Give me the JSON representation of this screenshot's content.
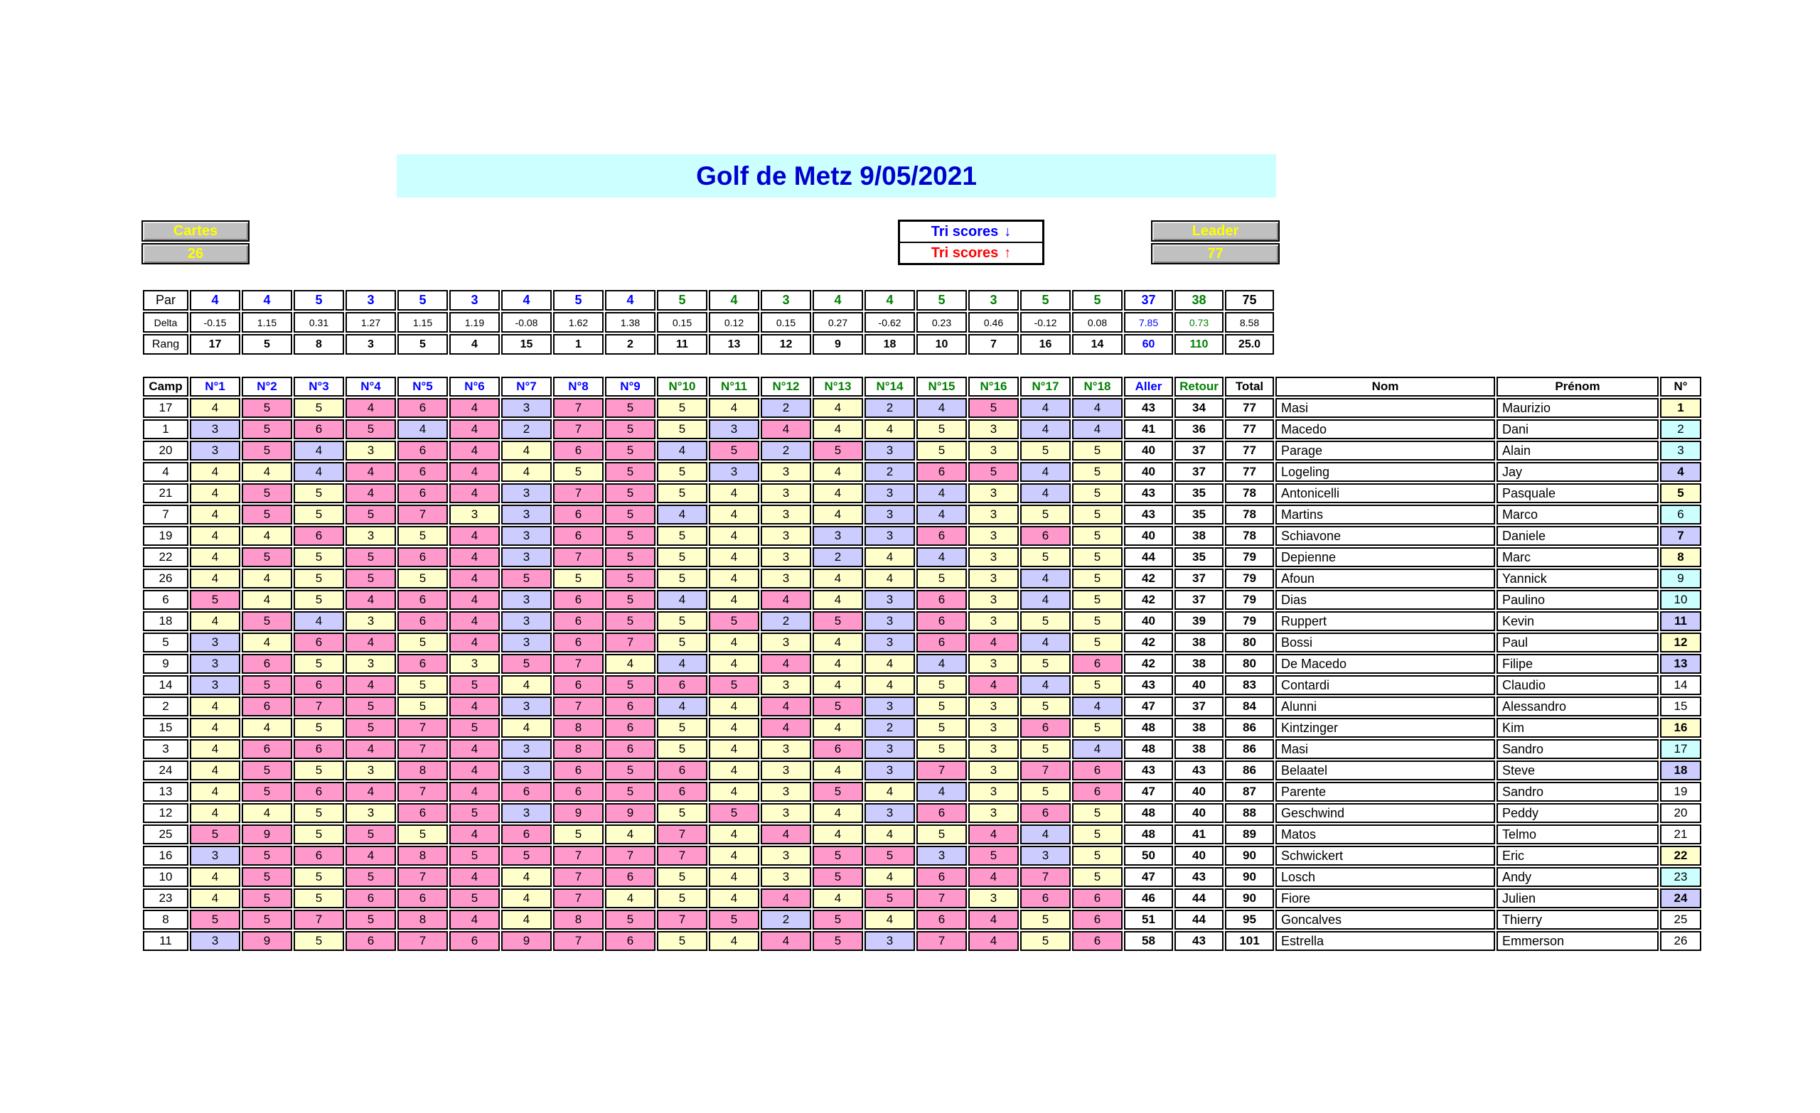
{
  "title": "Golf de Metz 9/05/2021",
  "controls": {
    "cartes_label": "Cartes",
    "cartes_value": "26",
    "tri_down_label": "Tri scores",
    "tri_down_arrow": "↓",
    "tri_up_label": "Tri scores",
    "tri_up_arrow": "↑",
    "leader_label": "Leader",
    "leader_value": "77"
  },
  "par_table": {
    "par_label": "Par",
    "par": [
      4,
      4,
      5,
      3,
      5,
      3,
      4,
      5,
      4,
      5,
      4,
      3,
      4,
      4,
      5,
      3,
      5,
      5
    ],
    "par_aller": "37",
    "par_retour": "38",
    "par_total": "75",
    "delta_label": "Delta",
    "delta": [
      "-0.15",
      "1.15",
      "0.31",
      "1.27",
      "1.15",
      "1.19",
      "-0.08",
      "1.62",
      "1.38",
      "0.15",
      "0.12",
      "0.15",
      "0.27",
      "-0.62",
      "0.23",
      "0.46",
      "-0.12",
      "0.08"
    ],
    "delta_aller": "7.85",
    "delta_retour": "0.73",
    "delta_total": "8.58",
    "rang_label": "Rang",
    "rang": [
      "17",
      "5",
      "8",
      "3",
      "5",
      "4",
      "15",
      "1",
      "2",
      "11",
      "13",
      "12",
      "9",
      "18",
      "10",
      "7",
      "16",
      "14"
    ],
    "rang_aller": "60",
    "rang_retour": "110",
    "rang_total": "25.0"
  },
  "table": {
    "headers": {
      "camp": "Camp",
      "holes": [
        "N°1",
        "N°2",
        "N°3",
        "N°4",
        "N°5",
        "N°6",
        "N°7",
        "N°8",
        "N°9",
        "N°10",
        "N°11",
        "N°12",
        "N°13",
        "N°14",
        "N°15",
        "N°16",
        "N°17",
        "N°18"
      ],
      "aller": "Aller",
      "retour": "Retour",
      "total": "Total",
      "nom": "Nom",
      "prenom": "Prénom",
      "num": "N°"
    },
    "players": [
      {
        "camp": "17",
        "scores": [
          4,
          5,
          5,
          4,
          6,
          4,
          3,
          7,
          5,
          5,
          4,
          2,
          4,
          2,
          4,
          5,
          4,
          4
        ],
        "aller": "43",
        "retour": "34",
        "total": "77",
        "nom": "Masi",
        "prenom": "Maurizio",
        "num": "1",
        "num_color": "y"
      },
      {
        "camp": "1",
        "scores": [
          3,
          5,
          6,
          5,
          4,
          4,
          2,
          7,
          5,
          5,
          3,
          4,
          4,
          4,
          5,
          3,
          4,
          4
        ],
        "aller": "41",
        "retour": "36",
        "total": "77",
        "nom": "Macedo",
        "prenom": "Dani",
        "num": "2",
        "num_color": "c"
      },
      {
        "camp": "20",
        "scores": [
          3,
          5,
          4,
          3,
          6,
          4,
          4,
          6,
          5,
          4,
          5,
          2,
          5,
          3,
          5,
          3,
          5,
          5
        ],
        "aller": "40",
        "retour": "37",
        "total": "77",
        "nom": "Parage",
        "prenom": "Alain",
        "num": "3",
        "num_color": "c"
      },
      {
        "camp": "4",
        "scores": [
          4,
          4,
          4,
          4,
          6,
          4,
          4,
          5,
          5,
          5,
          3,
          3,
          4,
          2,
          6,
          5,
          4,
          5
        ],
        "aller": "40",
        "retour": "37",
        "total": "77",
        "nom": "Logeling",
        "prenom": "Jay",
        "num": "4",
        "num_color": "l"
      },
      {
        "camp": "21",
        "scores": [
          4,
          5,
          5,
          4,
          6,
          4,
          3,
          7,
          5,
          5,
          4,
          3,
          4,
          3,
          4,
          3,
          4,
          5
        ],
        "aller": "43",
        "retour": "35",
        "total": "78",
        "nom": "Antonicelli",
        "prenom": "Pasquale",
        "num": "5",
        "num_color": "y"
      },
      {
        "camp": "7",
        "scores": [
          4,
          5,
          5,
          5,
          7,
          3,
          3,
          6,
          5,
          4,
          4,
          3,
          4,
          3,
          4,
          3,
          5,
          5
        ],
        "aller": "43",
        "retour": "35",
        "total": "78",
        "nom": "Martins",
        "prenom": "Marco",
        "num": "6",
        "num_color": "c"
      },
      {
        "camp": "19",
        "scores": [
          4,
          4,
          6,
          3,
          5,
          4,
          3,
          6,
          5,
          5,
          4,
          3,
          3,
          3,
          6,
          3,
          6,
          5
        ],
        "aller": "40",
        "retour": "38",
        "total": "78",
        "nom": "Schiavone",
        "prenom": "Daniele",
        "num": "7",
        "num_color": "l"
      },
      {
        "camp": "22",
        "scores": [
          4,
          5,
          5,
          5,
          6,
          4,
          3,
          7,
          5,
          5,
          4,
          3,
          2,
          4,
          4,
          3,
          5,
          5
        ],
        "aller": "44",
        "retour": "35",
        "total": "79",
        "nom": "Depienne",
        "prenom": "Marc",
        "num": "8",
        "num_color": "y"
      },
      {
        "camp": "26",
        "scores": [
          4,
          4,
          5,
          5,
          5,
          4,
          5,
          5,
          5,
          5,
          4,
          3,
          4,
          4,
          5,
          3,
          4,
          5
        ],
        "aller": "42",
        "retour": "37",
        "total": "79",
        "nom": "Afoun",
        "prenom": "Yannick",
        "num": "9",
        "num_color": "c"
      },
      {
        "camp": "6",
        "scores": [
          5,
          4,
          5,
          4,
          6,
          4,
          3,
          6,
          5,
          4,
          4,
          4,
          4,
          3,
          6,
          3,
          4,
          5
        ],
        "aller": "42",
        "retour": "37",
        "total": "79",
        "nom": "Dias",
        "prenom": "Paulino",
        "num": "10",
        "num_color": "c"
      },
      {
        "camp": "18",
        "scores": [
          4,
          5,
          4,
          3,
          6,
          4,
          3,
          6,
          5,
          5,
          5,
          2,
          5,
          3,
          6,
          3,
          5,
          5
        ],
        "aller": "40",
        "retour": "39",
        "total": "79",
        "nom": "Ruppert",
        "prenom": "Kevin",
        "num": "11",
        "num_color": "l"
      },
      {
        "camp": "5",
        "scores": [
          3,
          4,
          6,
          4,
          5,
          4,
          3,
          6,
          7,
          5,
          4,
          3,
          4,
          3,
          6,
          4,
          4,
          5
        ],
        "aller": "42",
        "retour": "38",
        "total": "80",
        "nom": "Bossi",
        "prenom": "Paul",
        "num": "12",
        "num_color": "y"
      },
      {
        "camp": "9",
        "scores": [
          3,
          6,
          5,
          3,
          6,
          3,
          5,
          7,
          4,
          4,
          4,
          4,
          4,
          4,
          4,
          3,
          5,
          6
        ],
        "aller": "42",
        "retour": "38",
        "total": "80",
        "nom": "De Macedo",
        "prenom": "Filipe",
        "num": "13",
        "num_color": "l"
      },
      {
        "camp": "14",
        "scores": [
          3,
          5,
          6,
          4,
          5,
          5,
          4,
          6,
          5,
          6,
          5,
          3,
          4,
          4,
          5,
          4,
          4,
          5
        ],
        "aller": "43",
        "retour": "40",
        "total": "83",
        "nom": "Contardi",
        "prenom": "Claudio",
        "num": "14",
        "num_color": "w"
      },
      {
        "camp": "2",
        "scores": [
          4,
          6,
          7,
          5,
          5,
          4,
          3,
          7,
          6,
          4,
          4,
          4,
          5,
          3,
          5,
          3,
          5,
          4
        ],
        "aller": "47",
        "retour": "37",
        "total": "84",
        "nom": "Alunni",
        "prenom": "Alessandro",
        "num": "15",
        "num_color": "w"
      },
      {
        "camp": "15",
        "scores": [
          4,
          4,
          5,
          5,
          7,
          5,
          4,
          8,
          6,
          5,
          4,
          4,
          4,
          2,
          5,
          3,
          6,
          5
        ],
        "aller": "48",
        "retour": "38",
        "total": "86",
        "nom": "Kintzinger",
        "prenom": "Kim",
        "num": "16",
        "num_color": "y"
      },
      {
        "camp": "3",
        "scores": [
          4,
          6,
          6,
          4,
          7,
          4,
          3,
          8,
          6,
          5,
          4,
          3,
          6,
          3,
          5,
          3,
          5,
          4
        ],
        "aller": "48",
        "retour": "38",
        "total": "86",
        "nom": "Masi",
        "prenom": "Sandro",
        "num": "17",
        "num_color": "c"
      },
      {
        "camp": "24",
        "scores": [
          4,
          5,
          5,
          3,
          8,
          4,
          3,
          6,
          5,
          6,
          4,
          3,
          4,
          3,
          7,
          3,
          7,
          6
        ],
        "aller": "43",
        "retour": "43",
        "total": "86",
        "nom": "Belaatel",
        "prenom": "Steve",
        "num": "18",
        "num_color": "l"
      },
      {
        "camp": "13",
        "scores": [
          4,
          5,
          6,
          4,
          7,
          4,
          6,
          6,
          5,
          6,
          4,
          3,
          5,
          4,
          4,
          3,
          5,
          6
        ],
        "aller": "47",
        "retour": "40",
        "total": "87",
        "nom": "Parente",
        "prenom": "Sandro",
        "num": "19",
        "num_color": "w"
      },
      {
        "camp": "12",
        "scores": [
          4,
          4,
          5,
          3,
          6,
          5,
          3,
          9,
          9,
          5,
          5,
          3,
          4,
          3,
          6,
          3,
          6,
          5
        ],
        "aller": "48",
        "retour": "40",
        "total": "88",
        "nom": "Geschwind",
        "prenom": "Peddy",
        "num": "20",
        "num_color": "w"
      },
      {
        "camp": "25",
        "scores": [
          5,
          9,
          5,
          5,
          5,
          4,
          6,
          5,
          4,
          7,
          4,
          4,
          4,
          4,
          5,
          4,
          4,
          5
        ],
        "aller": "48",
        "retour": "41",
        "total": "89",
        "nom": "Matos",
        "prenom": "Telmo",
        "num": "21",
        "num_color": "w"
      },
      {
        "camp": "16",
        "scores": [
          3,
          5,
          6,
          4,
          8,
          5,
          5,
          7,
          7,
          7,
          4,
          3,
          5,
          5,
          3,
          5,
          3,
          5
        ],
        "aller": "50",
        "retour": "40",
        "total": "90",
        "nom": "Schwickert",
        "prenom": "Eric",
        "num": "22",
        "num_color": "y"
      },
      {
        "camp": "10",
        "scores": [
          4,
          5,
          5,
          5,
          7,
          4,
          4,
          7,
          6,
          5,
          4,
          3,
          5,
          4,
          6,
          4,
          7,
          5
        ],
        "aller": "47",
        "retour": "43",
        "total": "90",
        "nom": "Losch",
        "prenom": "Andy",
        "num": "23",
        "num_color": "c"
      },
      {
        "camp": "23",
        "scores": [
          4,
          5,
          5,
          6,
          6,
          5,
          4,
          7,
          4,
          5,
          4,
          4,
          4,
          5,
          7,
          3,
          6,
          6
        ],
        "aller": "46",
        "retour": "44",
        "total": "90",
        "nom": "Fiore",
        "prenom": "Julien",
        "num": "24",
        "num_color": "l"
      },
      {
        "camp": "8",
        "scores": [
          5,
          5,
          7,
          5,
          8,
          4,
          4,
          8,
          5,
          7,
          5,
          2,
          5,
          4,
          6,
          4,
          5,
          6
        ],
        "aller": "51",
        "retour": "44",
        "total": "95",
        "nom": "Goncalves",
        "prenom": "Thierry",
        "num": "25",
        "num_color": "w"
      },
      {
        "camp": "11",
        "scores": [
          3,
          9,
          5,
          6,
          7,
          6,
          9,
          7,
          6,
          5,
          4,
          4,
          5,
          3,
          7,
          4,
          5,
          6
        ],
        "aller": "58",
        "retour": "43",
        "total": "101",
        "nom": "Estrella",
        "prenom": "Emmerson",
        "num": "26",
        "num_color": "w"
      }
    ]
  },
  "colors": {
    "under_par": "#CCCCFF",
    "par_match": "#FFFFCC",
    "over_par": "#FF99CC",
    "num_cyan": "#CCFFFF",
    "blue": "#0000FF",
    "green": "#008000",
    "red": "#FF0000",
    "button_gray": "#C0C0C0",
    "button_text": "#FFFF00",
    "banner_bg": "#CCFFFF",
    "title_text": "#0000CC"
  }
}
